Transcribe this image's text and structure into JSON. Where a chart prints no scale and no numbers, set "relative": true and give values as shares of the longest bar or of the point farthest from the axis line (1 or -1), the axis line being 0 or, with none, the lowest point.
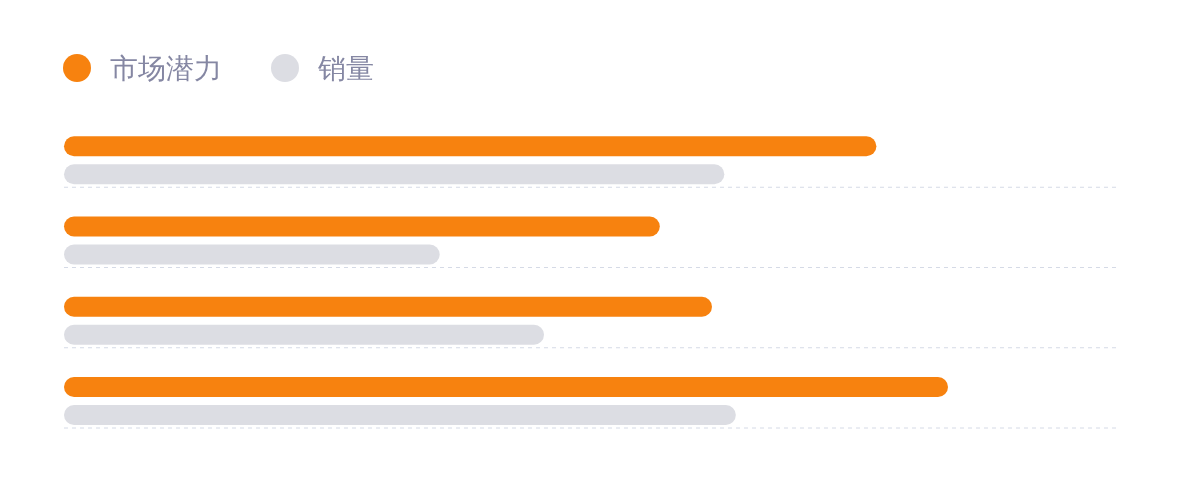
{
  "chart_data": {
    "type": "bar",
    "orientation": "horizontal",
    "relative": true,
    "categories": [
      null,
      null,
      null,
      null
    ],
    "series": [
      {
        "name": "市场潜力",
        "color": "#f7820f",
        "values": [
          0.919,
          0.674,
          0.733,
          1
        ]
      },
      {
        "name": "销量",
        "color": "#dcdde3",
        "values": [
          0.747,
          0.425,
          0.543,
          0.76
        ]
      }
    ],
    "grid": true,
    "legend": "top left"
  }
}
